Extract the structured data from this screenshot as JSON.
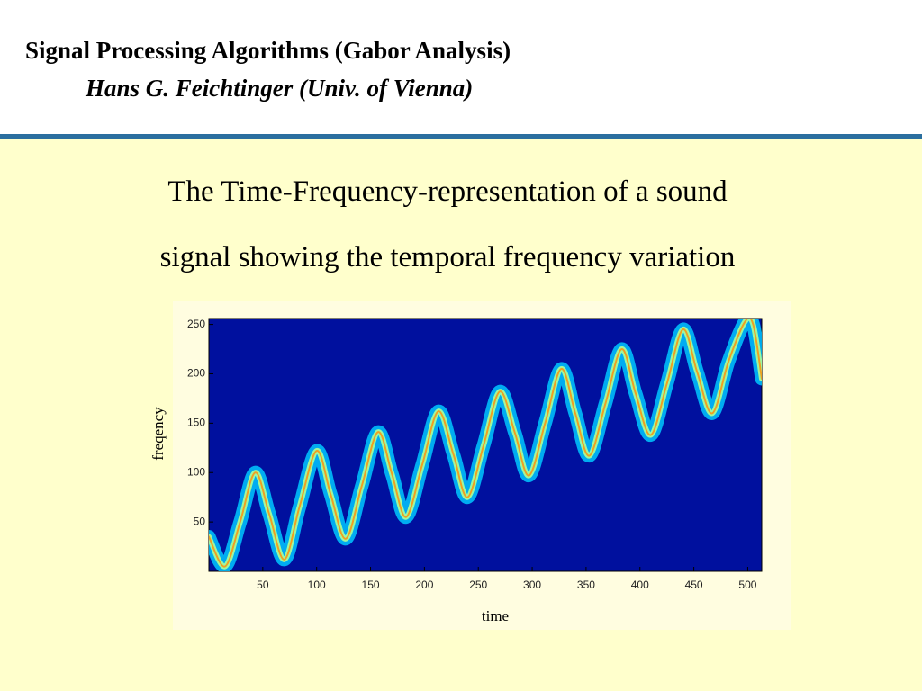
{
  "header": {
    "title": "Signal Processing Algorithms (Gabor Analysis)",
    "subtitle": "Hans G. Feichtinger (Univ. of Vienna)"
  },
  "body": {
    "lines": [
      "The Time-Frequency-representation of a sound",
      "signal showing the temporal frequency variation"
    ]
  },
  "chart_data": {
    "type": "line",
    "x_label": "time",
    "y_label": "freqency",
    "x": [
      0,
      15,
      29,
      43,
      56,
      70,
      84,
      100,
      113,
      127,
      142,
      157,
      170,
      183,
      198,
      213,
      227,
      240,
      255,
      270,
      284,
      297,
      312,
      327,
      340,
      353,
      368,
      383,
      396,
      410,
      425,
      440,
      453,
      467,
      482,
      497,
      505,
      513
    ],
    "series": [
      {
        "name": "ridge",
        "color": "#00c8ff",
        "values": [
          35,
          5,
          50,
          100,
          58,
          12,
          65,
          122,
          78,
          33,
          87,
          141,
          98,
          55,
          108,
          162,
          118,
          75,
          128,
          182,
          140,
          97,
          150,
          205,
          160,
          117,
          170,
          225,
          180,
          138,
          190,
          245,
          202,
          160,
          212,
          252,
          250,
          195
        ]
      }
    ],
    "background": "#00109e",
    "xlim": [
      0,
      513
    ],
    "ylim": [
      0,
      256
    ],
    "xticks": [
      50,
      100,
      150,
      200,
      250,
      300,
      350,
      400,
      450,
      500
    ],
    "yticks": [
      50,
      100,
      150,
      200,
      250
    ]
  }
}
